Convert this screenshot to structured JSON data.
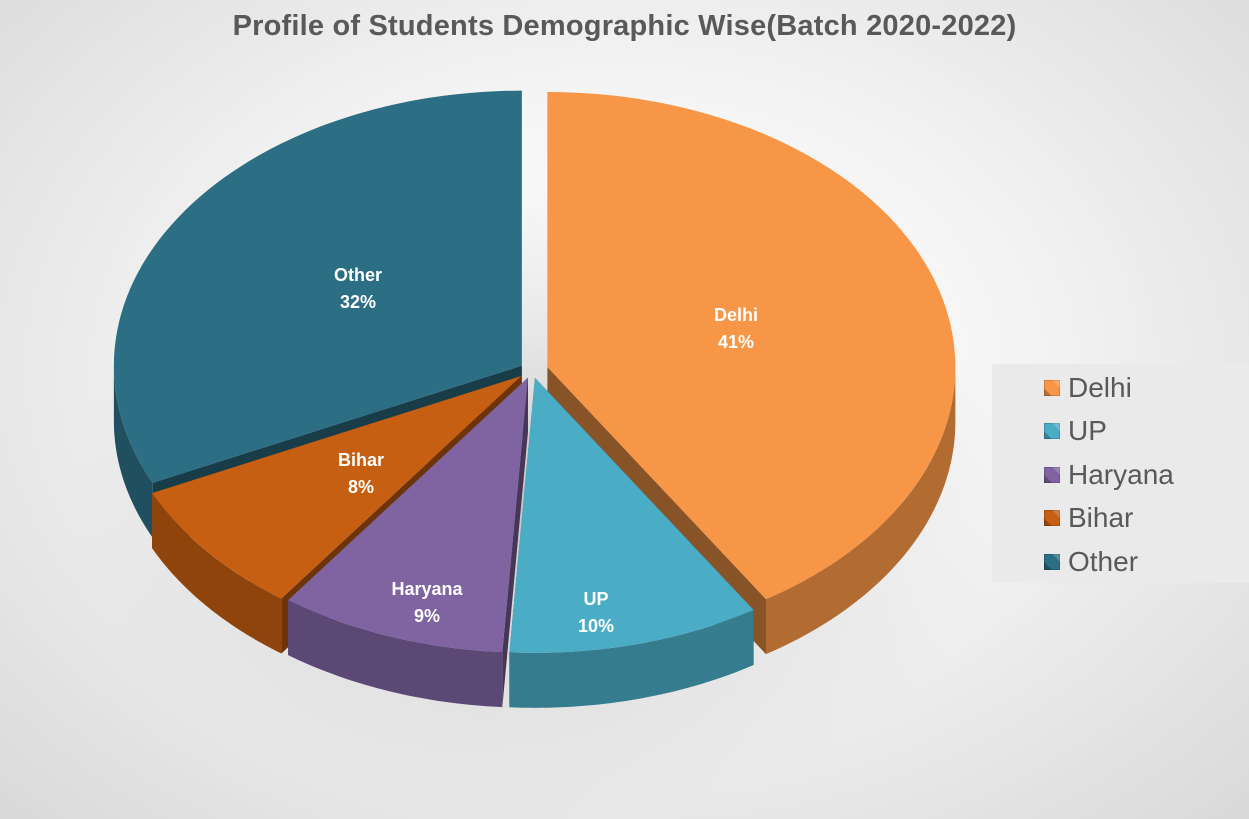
{
  "chart_data": {
    "type": "pie",
    "title": "Profile of Students Demographic Wise(Batch 2020-2022)",
    "categories": [
      "Delhi",
      "UP",
      "Haryana",
      "Bihar",
      "Other"
    ],
    "values": [
      41,
      10,
      9,
      8,
      32
    ],
    "value_unit": "%",
    "colors": [
      "#F79646",
      "#4BACC6",
      "#8064A2",
      "#C65F11",
      "#2C6E84"
    ],
    "style": "3d-exploded",
    "legend": {
      "position": "right"
    },
    "data_labels": [
      {
        "name": "Delhi",
        "percent": "41%"
      },
      {
        "name": "UP",
        "percent": "10%"
      },
      {
        "name": "Haryana",
        "percent": "9%"
      },
      {
        "name": "Bihar",
        "percent": "8%"
      },
      {
        "name": "Other",
        "percent": "32%"
      }
    ]
  }
}
